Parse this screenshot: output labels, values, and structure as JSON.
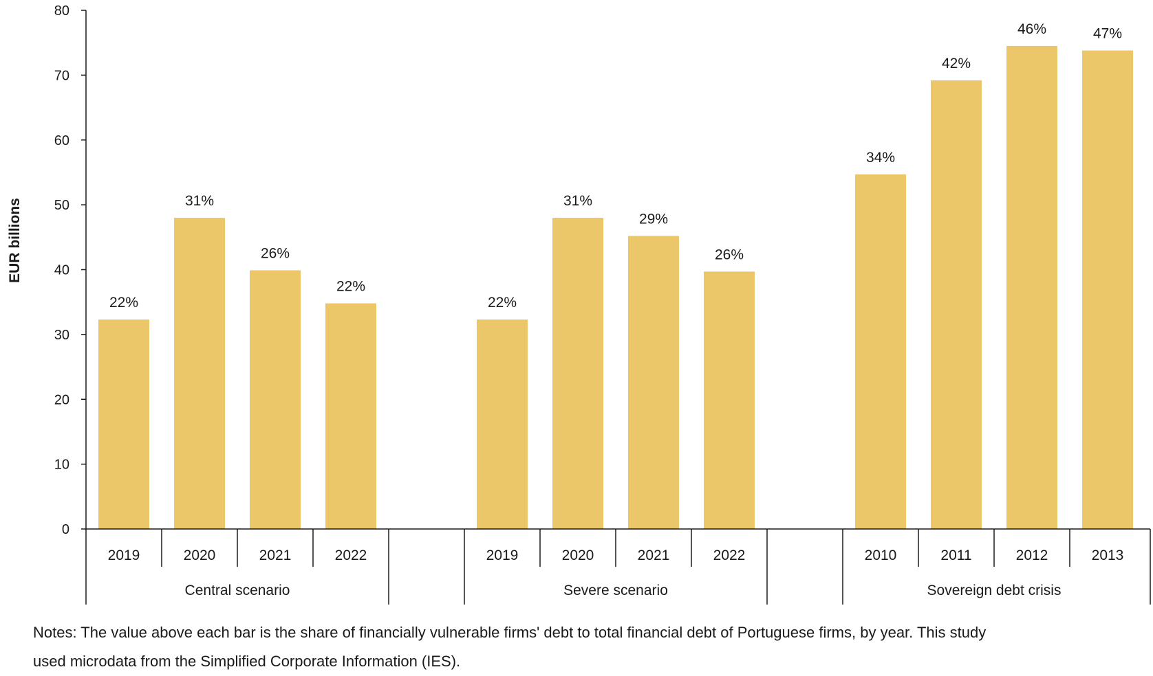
{
  "chart_data": {
    "type": "bar",
    "ylabel": "EUR billions",
    "ylim": [
      0,
      80
    ],
    "yticks": [
      0,
      10,
      20,
      30,
      40,
      50,
      60,
      70,
      80
    ],
    "grid": false,
    "bar_color": "#ecc76a",
    "groups": [
      {
        "name": "Central scenario",
        "categories": [
          "2019",
          "2020",
          "2021",
          "2022"
        ],
        "values": [
          32.3,
          48.0,
          39.9,
          34.8
        ],
        "labels": [
          "22%",
          "31%",
          "26%",
          "22%"
        ]
      },
      {
        "name": "Severe scenario",
        "categories": [
          "2019",
          "2020",
          "2021",
          "2022"
        ],
        "values": [
          32.3,
          48.0,
          45.2,
          39.7
        ],
        "labels": [
          "22%",
          "31%",
          "29%",
          "26%"
        ]
      },
      {
        "name": "Sovereign debt crisis",
        "categories": [
          "2010",
          "2011",
          "2012",
          "2013"
        ],
        "values": [
          54.7,
          69.2,
          74.5,
          73.8
        ],
        "labels": [
          "34%",
          "42%",
          "46%",
          "47%"
        ]
      }
    ]
  },
  "notes": {
    "line1": "Notes: The value above each bar is the share of financially vulnerable firms' debt to total financial debt of Portuguese firms, by year. This study",
    "line2": "used microdata from the Simplified Corporate Information (IES)."
  }
}
